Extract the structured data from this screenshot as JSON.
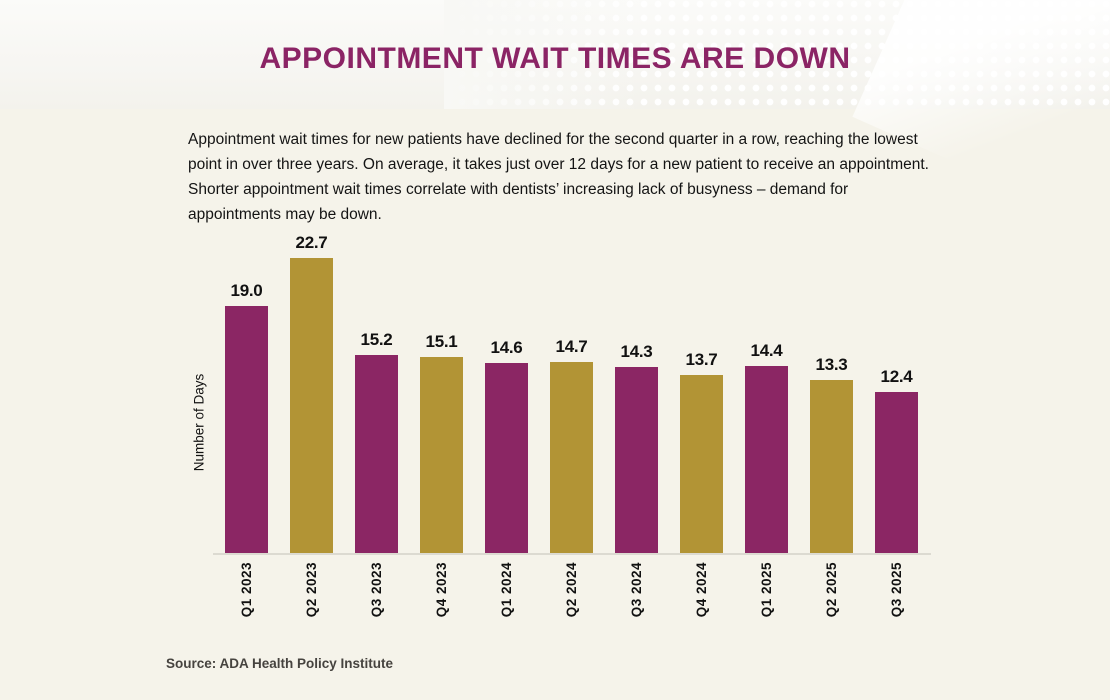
{
  "header": {
    "title": "APPOINTMENT WAIT TIMES ARE DOWN"
  },
  "intro": {
    "text": "Appointment wait times for new patients have declined for the second quarter in a row, reaching the lowest point in over three years. On average, it takes just over 12 days for a new patient to receive an appointment. Shorter appointment wait times correlate with dentists’ increasing lack of busyness – demand for appointments may be down."
  },
  "chart_data": {
    "type": "bar",
    "title": "",
    "categories": [
      "Q1 2023",
      "Q2 2023",
      "Q3 2023",
      "Q4 2023",
      "Q1 2024",
      "Q2 2024",
      "Q3 2024",
      "Q4 2024",
      "Q1 2025",
      "Q2 2025",
      "Q3 2025"
    ],
    "values": [
      19.0,
      22.7,
      15.2,
      15.1,
      14.6,
      14.7,
      14.3,
      13.7,
      14.4,
      13.3,
      12.4
    ],
    "xlabel": "",
    "ylabel": "Number of Days",
    "ylim": [
      0,
      25
    ],
    "grid": false,
    "legend_position": "none",
    "value_labels_shown": true,
    "bar_colors_alternating": [
      "#8B2664",
      "#B29435"
    ]
  },
  "footer": {
    "source": "Source: ADA Health Policy Institute"
  },
  "colors": {
    "accent_purple": "#8B2664",
    "accent_gold": "#B29435",
    "title_text": "#8B2465",
    "background_cream": "#F5F3EA",
    "header_band": "#F8F8F5",
    "axis_line": "#DCDAD1",
    "source_text": "#46433F"
  }
}
